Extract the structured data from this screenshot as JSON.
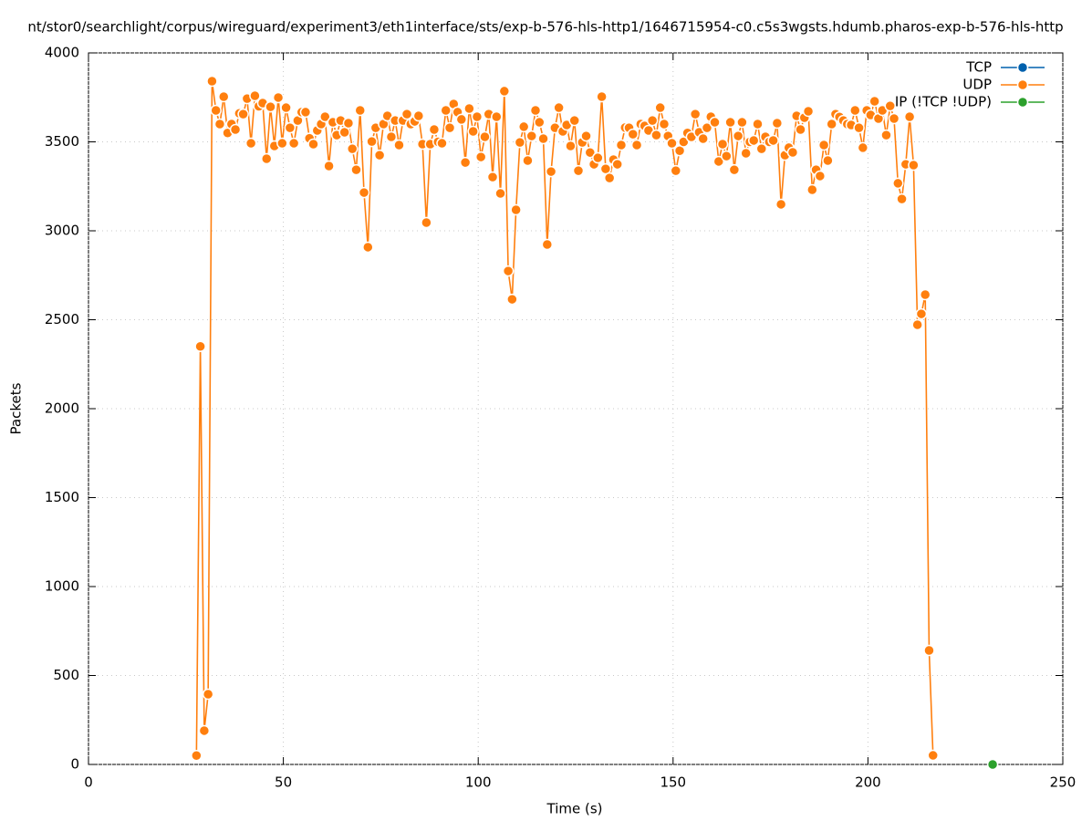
{
  "chart_data": {
    "type": "line",
    "title": "nt/stor0/searchlight/corpus/wireguard/experiment3/eth1interface/sts/exp-b-576-hls-http1/1646715954-c0.c5s3wgsts.hdumb.pharos-exp-b-576-hls-http",
    "x_label": "Time (s)",
    "y_label": "Packets",
    "xlim": [
      0,
      250
    ],
    "xticks": [
      0,
      50,
      100,
      150,
      200,
      250
    ],
    "ylim": [
      0,
      4000
    ],
    "yticks": [
      0,
      500,
      1000,
      1500,
      2000,
      2500,
      3000,
      3500,
      4000
    ],
    "grid": true,
    "legend": "top-right",
    "series": [
      {
        "name": "TCP",
        "color": "#0060ad",
        "x": [],
        "values": []
      },
      {
        "name": "UDP",
        "color": "#ff7f0e",
        "x": [
          27.7,
          28.7,
          29.7,
          30.7,
          31.7,
          32.7,
          33.7,
          34.7,
          35.7,
          36.7,
          37.7,
          38.7,
          39.7,
          40.7,
          41.7,
          42.7,
          43.7,
          44.7,
          45.7,
          46.7,
          47.7,
          48.7,
          49.7,
          50.7,
          51.7,
          52.7,
          53.7,
          54.7,
          55.7,
          56.7,
          57.7,
          58.7,
          59.7,
          60.7,
          61.7,
          62.7,
          63.7,
          64.7,
          65.7,
          66.7,
          67.7,
          68.7,
          69.7,
          70.7,
          71.7,
          72.7,
          73.7,
          74.7,
          75.7,
          76.7,
          77.7,
          78.7,
          79.7,
          80.7,
          81.7,
          82.7,
          83.7,
          84.7,
          85.7,
          86.7,
          87.7,
          88.7,
          89.7,
          90.7,
          91.7,
          92.7,
          93.7,
          94.7,
          95.7,
          96.7,
          97.7,
          98.7,
          99.7,
          100.7,
          101.7,
          102.7,
          103.7,
          104.7,
          105.7,
          106.7,
          107.7,
          108.7,
          109.7,
          110.7,
          111.7,
          112.7,
          113.7,
          114.7,
          115.7,
          116.7,
          117.7,
          118.7,
          119.7,
          120.7,
          121.7,
          122.7,
          123.7,
          124.7,
          125.7,
          126.7,
          127.7,
          128.7,
          129.7,
          130.7,
          131.7,
          132.7,
          133.7,
          134.7,
          135.7,
          136.7,
          137.7,
          138.7,
          139.7,
          140.7,
          141.7,
          142.7,
          143.7,
          144.7,
          145.7,
          146.7,
          147.7,
          148.7,
          149.7,
          150.7,
          151.7,
          152.7,
          153.7,
          154.7,
          155.7,
          156.7,
          157.7,
          158.7,
          159.7,
          160.7,
          161.7,
          162.7,
          163.7,
          164.7,
          165.7,
          166.7,
          167.7,
          168.7,
          169.7,
          170.7,
          171.7,
          172.7,
          173.7,
          174.7,
          175.7,
          176.7,
          177.7,
          178.7,
          179.7,
          180.7,
          181.7,
          182.7,
          183.7,
          184.7,
          185.7,
          186.7,
          187.7,
          188.7,
          189.7,
          190.7,
          191.7,
          192.7,
          193.7,
          194.7,
          195.7,
          196.7,
          197.7,
          198.7,
          199.7,
          200.7,
          201.7,
          202.7,
          203.7,
          204.7,
          205.7,
          206.7,
          207.7,
          208.7,
          209.7,
          210.7,
          211.7,
          212.7,
          213.7,
          214.7,
          215.7,
          216.7
        ],
        "values": [
          50,
          2350,
          190,
          395,
          3841,
          3677,
          3600,
          3754,
          3550,
          3600,
          3569,
          3660,
          3656,
          3743,
          3492,
          3759,
          3700,
          3718,
          3405,
          3697,
          3477,
          3749,
          3492,
          3692,
          3579,
          3492,
          3620,
          3667,
          3667,
          3520,
          3487,
          3564,
          3600,
          3641,
          3364,
          3610,
          3538,
          3620,
          3554,
          3605,
          3461,
          3343,
          3677,
          3215,
          2908,
          3502,
          3579,
          3425,
          3600,
          3646,
          3528,
          3620,
          3482,
          3620,
          3656,
          3600,
          3615,
          3646,
          3487,
          3046,
          3487,
          3569,
          3500,
          3492,
          3677,
          3579,
          3713,
          3667,
          3626,
          3384,
          3687,
          3559,
          3641,
          3415,
          3528,
          3656,
          3302,
          3641,
          3210,
          3785,
          2774,
          2615,
          3118,
          3497,
          3585,
          3395,
          3533,
          3677,
          3610,
          3518,
          2923,
          3333,
          3579,
          3692,
          3559,
          3595,
          3477,
          3620,
          3338,
          3497,
          3533,
          3440,
          3374,
          3410,
          3754,
          3348,
          3297,
          3400,
          3374,
          3482,
          3580,
          3579,
          3543,
          3482,
          3600,
          3590,
          3564,
          3620,
          3538,
          3692,
          3600,
          3533,
          3492,
          3338,
          3450,
          3500,
          3550,
          3528,
          3656,
          3554,
          3518,
          3579,
          3641,
          3610,
          3390,
          3487,
          3420,
          3610,
          3343,
          3533,
          3610,
          3436,
          3500,
          3508,
          3600,
          3461,
          3528,
          3500,
          3508,
          3605,
          3149,
          3425,
          3467,
          3441,
          3646,
          3569,
          3636,
          3672,
          3231,
          3343,
          3308,
          3482,
          3395,
          3600,
          3656,
          3640,
          3620,
          3600,
          3595,
          3677,
          3579,
          3467,
          3677,
          3651,
          3728,
          3631,
          3677,
          3538,
          3702,
          3631,
          3267,
          3179,
          3374,
          3641,
          3369,
          2472,
          2533,
          2641,
          641,
          51
        ]
      },
      {
        "name": "IP (!TCP  !UDP)",
        "color": "#2ca02c",
        "x": [
          232
        ],
        "values": [
          0
        ]
      }
    ]
  }
}
